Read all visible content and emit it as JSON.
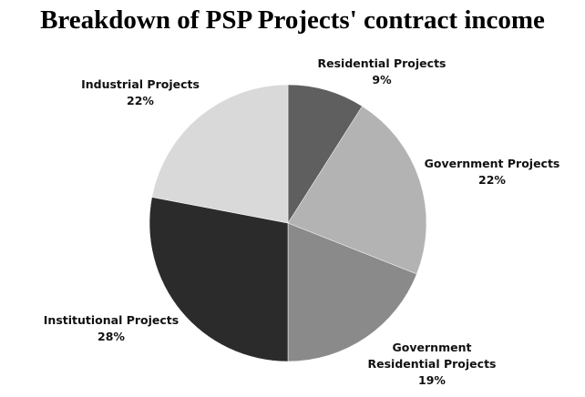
{
  "chart_data": {
    "type": "pie",
    "title": "Breakdown of PSP Projects' contract income",
    "slices": [
      {
        "lines": [
          "Residential Projects"
        ],
        "value": 9,
        "value_label": "9%",
        "color": "#5f5f5f"
      },
      {
        "lines": [
          "Government Projects"
        ],
        "value": 22,
        "value_label": "22%",
        "color": "#b3b3b3"
      },
      {
        "lines": [
          "Government",
          "Residential Projects"
        ],
        "value": 19,
        "value_label": "19%",
        "color": "#8a8a8a"
      },
      {
        "lines": [
          "Institutional Projects"
        ],
        "value": 28,
        "value_label": "28%",
        "color": "#2b2b2b"
      },
      {
        "lines": [
          "Industrial Projects"
        ],
        "value": 22,
        "value_label": "22%",
        "color": "#d9d9d9"
      }
    ],
    "legend": "none",
    "start_angle": "12 o'clock",
    "direction": "clockwise"
  }
}
